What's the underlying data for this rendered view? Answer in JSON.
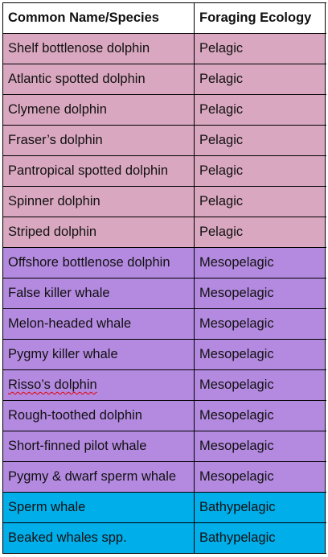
{
  "table": {
    "headers": [
      "Common Name/Species",
      "Foraging Ecology"
    ],
    "colors": {
      "Pelagic": "#d9a7bf",
      "Mesopelagic": "#b48ae0",
      "Bathypelagic": "#00aeea"
    },
    "rows": [
      {
        "species": "Shelf bottlenose dolphin",
        "ecology": "Pelagic"
      },
      {
        "species": "Atlantic spotted dolphin",
        "ecology": "Pelagic"
      },
      {
        "species": "Clymene dolphin",
        "ecology": "Pelagic"
      },
      {
        "species": "Fraser’s dolphin",
        "ecology": "Pelagic"
      },
      {
        "species": "Pantropical spotted dolphin",
        "ecology": "Pelagic"
      },
      {
        "species": "Spinner dolphin",
        "ecology": "Pelagic"
      },
      {
        "species": "Striped dolphin",
        "ecology": "Pelagic"
      },
      {
        "species": "Offshore bottlenose dolphin",
        "ecology": "Mesopelagic"
      },
      {
        "species": "False killer whale",
        "ecology": "Mesopelagic"
      },
      {
        "species": "Melon-headed whale",
        "ecology": "Mesopelagic"
      },
      {
        "species": "Pygmy killer whale",
        "ecology": "Mesopelagic"
      },
      {
        "species": "Risso’s dolphin",
        "ecology": "Mesopelagic"
      },
      {
        "species": "Rough-toothed dolphin",
        "ecology": "Mesopelagic"
      },
      {
        "species": "Short-finned pilot whale",
        "ecology": "Mesopelagic"
      },
      {
        "species": "Pygmy & dwarf sperm whale",
        "ecology": "Mesopelagic"
      },
      {
        "species": "Sperm whale",
        "ecology": "Bathypelagic"
      },
      {
        "species": "Beaked whales spp.",
        "ecology": "Bathypelagic"
      }
    ]
  }
}
